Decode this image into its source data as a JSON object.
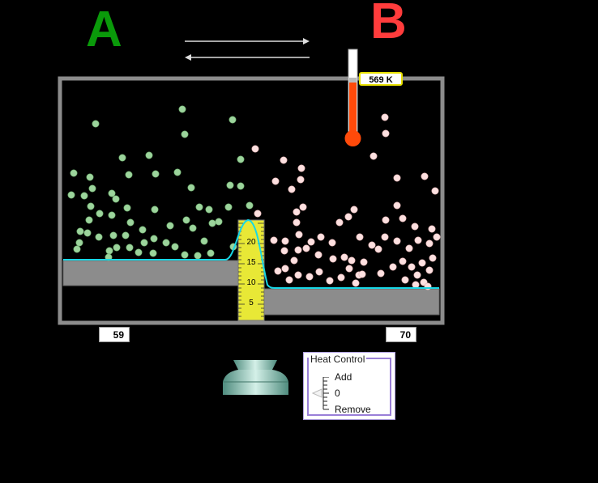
{
  "labels": {
    "left": "A",
    "right": "B"
  },
  "colors": {
    "label_left": "#0a9a0a",
    "label_right": "#ff3c3c",
    "particle_left": "#9cd49c",
    "particle_right": "#fde0e0",
    "potential_curve": "#17d7e6",
    "floor": "#8c8c8c",
    "ruler": "#e8e836",
    "mercury": "#ff4a0a"
  },
  "thermometer": {
    "readout": "569 K"
  },
  "counts": {
    "left": "59",
    "right": "70"
  },
  "ruler": {
    "ticks": [
      "5",
      "10",
      "15",
      "20"
    ]
  },
  "heat_control": {
    "title": "Heat Control",
    "add_label": "Add",
    "zero_label": "0",
    "remove_label": "Remove"
  },
  "icons": {
    "forward": "right-arrow-icon",
    "reverse": "left-arrow-icon",
    "stove": "stove-icon",
    "slider_thumb": "slider-thumb-icon"
  }
}
